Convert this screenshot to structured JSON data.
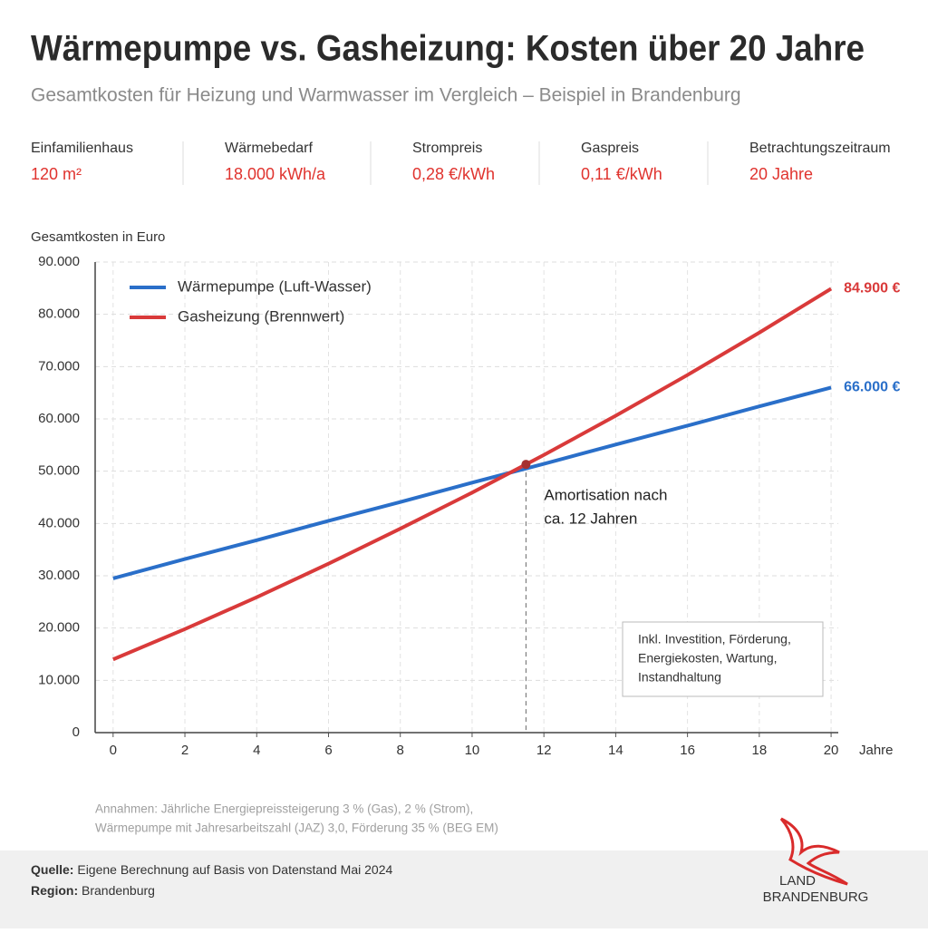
{
  "header": {
    "title": "Wärmepumpe vs. Gasheizung: Kosten über 20 Jahre",
    "subtitle": "Gesamtkosten für Heizung und Warmwasser im Vergleich – Beispiel in Brandenburg"
  },
  "facts": [
    {
      "label": "Einfamilienhaus",
      "value": "120 m²"
    },
    {
      "label": "Wärmebedarf",
      "value": "18.000 kWh/a"
    },
    {
      "label": "Strompreis",
      "value": "0,28 €/kWh"
    },
    {
      "label": "Gaspreis",
      "value": "0,11 €/kWh"
    },
    {
      "label": "Betrachtungszeitraum",
      "value": "20 Jahre"
    }
  ],
  "chart_data": {
    "type": "line",
    "y_label": "Gesamtkosten in Euro",
    "x_label": "Jahre",
    "x": [
      0,
      2,
      4,
      6,
      8,
      10,
      12,
      14,
      16,
      18,
      20
    ],
    "series": [
      {
        "name": "Wärmepumpe (Luft-Wasser)",
        "color": "#2a6fc9",
        "values": [
          29500,
          33200,
          36800,
          40500,
          44100,
          47800,
          51400,
          55100,
          58700,
          62400,
          66000
        ],
        "value_labels": [
          null,
          null,
          null,
          null,
          null,
          null,
          null,
          null,
          null,
          null,
          "66.000 €"
        ]
      },
      {
        "name": "Gasheizung (Brennwert)",
        "color": "#d93a3a",
        "values": [
          14000,
          19800,
          25900,
          32300,
          39000,
          45900,
          53100,
          60600,
          68400,
          76500,
          84900
        ],
        "value_labels": [
          null,
          null,
          null,
          null,
          null,
          null,
          null,
          null,
          null,
          null,
          "84.900 €"
        ]
      }
    ],
    "xlim": [
      -0.5,
      20.2
    ],
    "ylim": [
      0,
      90000
    ],
    "xticks": [
      0,
      2,
      4,
      6,
      8,
      10,
      12,
      14,
      16,
      18,
      20
    ],
    "yticks": [
      0,
      {
        "value": 10000,
        "label": "10.000"
      },
      {
        "value": 20000,
        "label": "20.000"
      },
      {
        "value": 30000,
        "label": "30.000"
      },
      {
        "value": 40000,
        "label": "40.000"
      },
      {
        "value": 50000,
        "label": "50.000"
      },
      {
        "value": 60000,
        "label": "60.000"
      },
      {
        "value": 70000,
        "label": "70.000"
      },
      {
        "value": 80000,
        "label": "80.000"
      },
      {
        "value": 90000,
        "label": "90.000"
      }
    ],
    "grid": true,
    "legend": "upper left",
    "annotation": {
      "x": 11.5,
      "y": 51300,
      "lines": [
        "Amortisation nach",
        "ca. 12 Jahren"
      ]
    },
    "note": [
      "Inkl. Investition, Förderung,",
      "Energiekosten, Wartung,",
      "Instandhaltung"
    ]
  },
  "assumptions": [
    "Annahmen: Jährliche Energiepreissteigerung 3 % (Gas), 2 % (Strom),",
    "Wärmepumpe mit Jahresarbeitszahl (JAZ) 3,0, Förderung 35 % (BEG EM)"
  ],
  "source": {
    "label": "Quelle:",
    "text": "Eigene Berechnung auf Basis von Datenstand Mai 2024"
  },
  "region": {
    "label": "Region:",
    "text": "Brandenburg"
  },
  "logo": [
    "LAND",
    "BRANDENBURG"
  ]
}
